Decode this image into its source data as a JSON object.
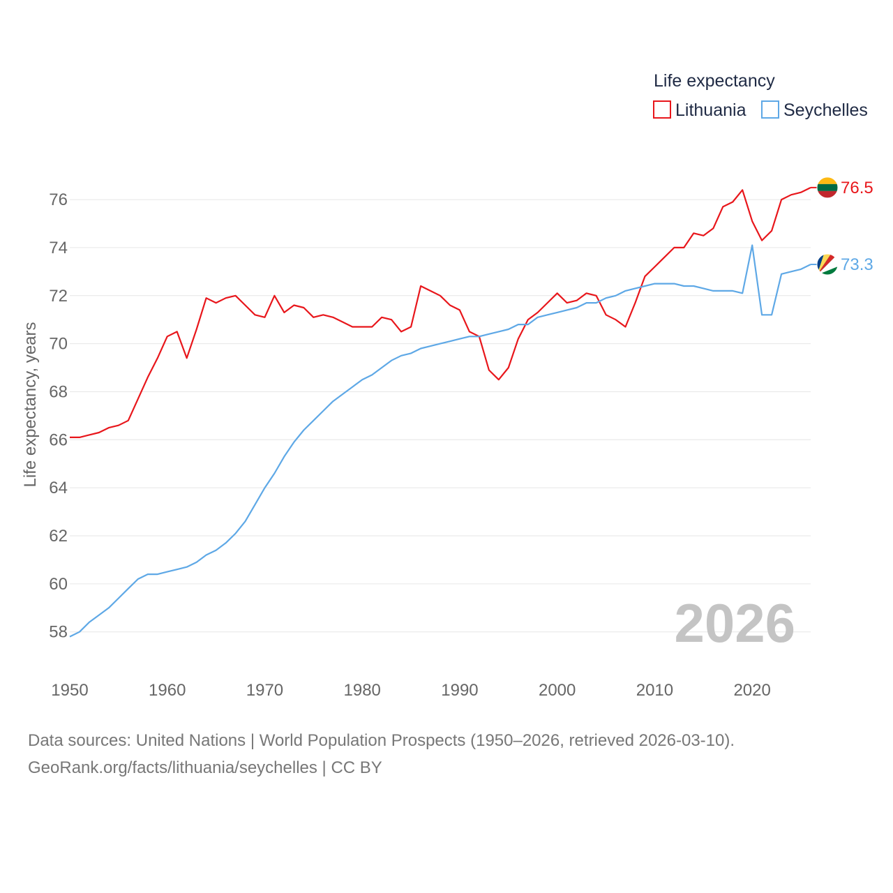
{
  "chart_data": {
    "type": "line",
    "title": "Life expectancy",
    "ylabel": "Life expectancy, years",
    "xlabel": "",
    "xlim": [
      1950,
      2026
    ],
    "ylim": [
      56.8,
      77.6
    ],
    "x_ticks": [
      1950,
      1960,
      1970,
      1980,
      1990,
      2000,
      2010,
      2020
    ],
    "y_ticks": [
      58,
      60,
      62,
      64,
      66,
      68,
      70,
      72,
      74,
      76
    ],
    "grid": "horizontal",
    "legend_position": "top-right",
    "year_label": "2026",
    "x": [
      1950,
      1951,
      1952,
      1953,
      1954,
      1955,
      1956,
      1957,
      1958,
      1959,
      1960,
      1961,
      1962,
      1963,
      1964,
      1965,
      1966,
      1967,
      1968,
      1969,
      1970,
      1971,
      1972,
      1973,
      1974,
      1975,
      1976,
      1977,
      1978,
      1979,
      1980,
      1981,
      1982,
      1983,
      1984,
      1985,
      1986,
      1987,
      1988,
      1989,
      1990,
      1991,
      1992,
      1993,
      1994,
      1995,
      1996,
      1997,
      1998,
      1999,
      2000,
      2001,
      2002,
      2003,
      2004,
      2005,
      2006,
      2007,
      2008,
      2009,
      2010,
      2011,
      2012,
      2013,
      2014,
      2015,
      2016,
      2017,
      2018,
      2019,
      2020,
      2021,
      2022,
      2023,
      2024,
      2025,
      2026
    ],
    "series": [
      {
        "name": "Lithuania",
        "color": "#e8161b",
        "end_label": "76.5",
        "flag": "lithuania-flag-icon",
        "values": [
          66.1,
          66.1,
          66.2,
          66.3,
          66.5,
          66.6,
          66.8,
          67.7,
          68.6,
          69.4,
          70.3,
          70.5,
          69.4,
          70.6,
          71.9,
          71.7,
          71.9,
          72.0,
          71.6,
          71.2,
          71.1,
          72.0,
          71.3,
          71.6,
          71.5,
          71.1,
          71.2,
          71.1,
          70.9,
          70.7,
          70.7,
          70.7,
          71.1,
          71.0,
          70.5,
          70.7,
          72.4,
          72.2,
          72.0,
          71.6,
          71.4,
          70.5,
          70.3,
          68.9,
          68.5,
          69.0,
          70.2,
          71.0,
          71.3,
          71.7,
          72.1,
          71.7,
          71.8,
          72.1,
          72.0,
          71.2,
          71.0,
          70.7,
          71.7,
          72.8,
          73.2,
          73.6,
          74.0,
          74.0,
          74.6,
          74.5,
          74.8,
          75.7,
          75.9,
          76.4,
          75.1,
          74.3,
          74.7,
          76.0,
          76.2,
          76.3,
          76.5
        ]
      },
      {
        "name": "Seychelles",
        "color": "#5ea8e6",
        "end_label": "73.3",
        "flag": "seychelles-flag-icon",
        "values": [
          57.8,
          58.0,
          58.4,
          58.7,
          59.0,
          59.4,
          59.8,
          60.2,
          60.4,
          60.4,
          60.5,
          60.6,
          60.7,
          60.9,
          61.2,
          61.4,
          61.7,
          62.1,
          62.6,
          63.3,
          64.0,
          64.6,
          65.3,
          65.9,
          66.4,
          66.8,
          67.2,
          67.6,
          67.9,
          68.2,
          68.5,
          68.7,
          69.0,
          69.3,
          69.5,
          69.6,
          69.8,
          69.9,
          70.0,
          70.1,
          70.2,
          70.3,
          70.3,
          70.4,
          70.5,
          70.6,
          70.8,
          70.8,
          71.1,
          71.2,
          71.3,
          71.4,
          71.5,
          71.7,
          71.7,
          71.9,
          72.0,
          72.2,
          72.3,
          72.4,
          72.5,
          72.5,
          72.5,
          72.4,
          72.4,
          72.3,
          72.2,
          72.2,
          72.2,
          72.1,
          74.1,
          71.2,
          71.2,
          72.9,
          73.0,
          73.1,
          73.3
        ]
      }
    ]
  },
  "footer": {
    "line1": "Data sources: United Nations | World Population Prospects (1950–2026, retrieved 2026-03-10).",
    "line2": "GeoRank.org/facts/lithuania/seychelles | CC BY"
  }
}
